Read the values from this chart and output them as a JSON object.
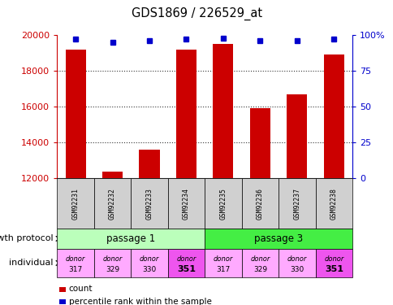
{
  "title": "GDS1869 / 226529_at",
  "samples": [
    "GSM92231",
    "GSM92232",
    "GSM92233",
    "GSM92234",
    "GSM92235",
    "GSM92236",
    "GSM92237",
    "GSM92238"
  ],
  "counts": [
    19200,
    12400,
    13600,
    19200,
    19500,
    15900,
    16700,
    18900
  ],
  "percentiles": [
    97,
    95,
    96,
    97,
    98,
    96,
    96,
    97
  ],
  "ylim_left": [
    12000,
    20000
  ],
  "ylim_right": [
    0,
    100
  ],
  "yticks_left": [
    12000,
    14000,
    16000,
    18000,
    20000
  ],
  "yticks_right": [
    0,
    25,
    50,
    75,
    100
  ],
  "bar_color": "#cc0000",
  "dot_color": "#0000cc",
  "passage1_color": "#bbffbb",
  "passage3_color": "#44ee44",
  "donor_colors_light": "#ffaaff",
  "donor_colors_dark": "#ee55ee",
  "donor_labels": [
    "donor\n317",
    "donor\n329",
    "donor\n330",
    "donor\n351"
  ],
  "passage_labels": [
    "passage 1",
    "passage 3"
  ],
  "growth_protocol_label": "growth protocol",
  "individual_label": "individual",
  "legend_count": "count",
  "legend_pct": "percentile rank within the sample"
}
